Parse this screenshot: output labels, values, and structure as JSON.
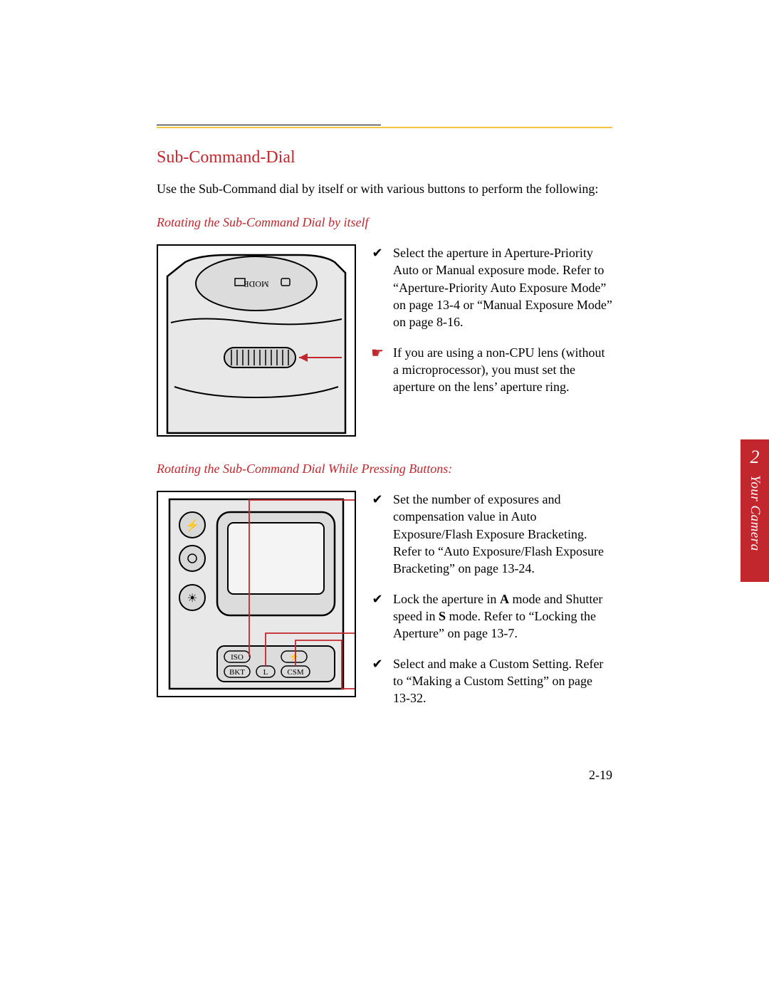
{
  "colors": {
    "accent_red": "#c1272d",
    "rule_yellow": "#f5c542",
    "text": "#000000",
    "bg": "#ffffff"
  },
  "page_number": "2-19",
  "side_tab": {
    "number": "2",
    "label": "Your Camera"
  },
  "section": {
    "title": "Sub-Command-Dial",
    "intro": "Use the Sub-Command dial by itself or with various buttons to perform the following:"
  },
  "block1": {
    "heading": "Rotating the Sub-Command Dial by itself",
    "figure_label": "MODE",
    "items": [
      {
        "marker": "✔",
        "marker_type": "check",
        "text": "Select the aperture in Aperture-Priority Auto or Manual exposure mode. Refer to “Aperture-Priority Auto Exposure Mode” on page 13-4 or “Manual Exposure Mode” on page 8-16."
      },
      {
        "marker": "☛",
        "marker_type": "pointer",
        "text": "If you are using a non-CPU lens (without a microprocessor), you must set the aperture on the lens’ aperture ring."
      }
    ]
  },
  "block2": {
    "heading": "Rotating the Sub-Command Dial While Pressing Buttons:",
    "buttons": {
      "iso": "ISO",
      "bkt": "BKT",
      "l": "L",
      "csm": "CSM"
    },
    "items": [
      {
        "marker": "✔",
        "marker_type": "check",
        "text": "Set the number of exposures and compensation value in Auto Exposure/Flash Exposure Bracketing. Refer to “Auto Exposure/Flash Exposure Bracketing” on page 13-24."
      },
      {
        "marker": "✔",
        "marker_type": "check",
        "text_html": "Lock the aperture in <b>A</b> mode and Shutter speed in <b>S</b> mode. Refer to “Locking the Aperture” on page 13-7."
      },
      {
        "marker": "✔",
        "marker_type": "check",
        "text": "Select and make a Custom Setting. Refer to “Making a Custom Setting” on page 13-32."
      }
    ]
  }
}
